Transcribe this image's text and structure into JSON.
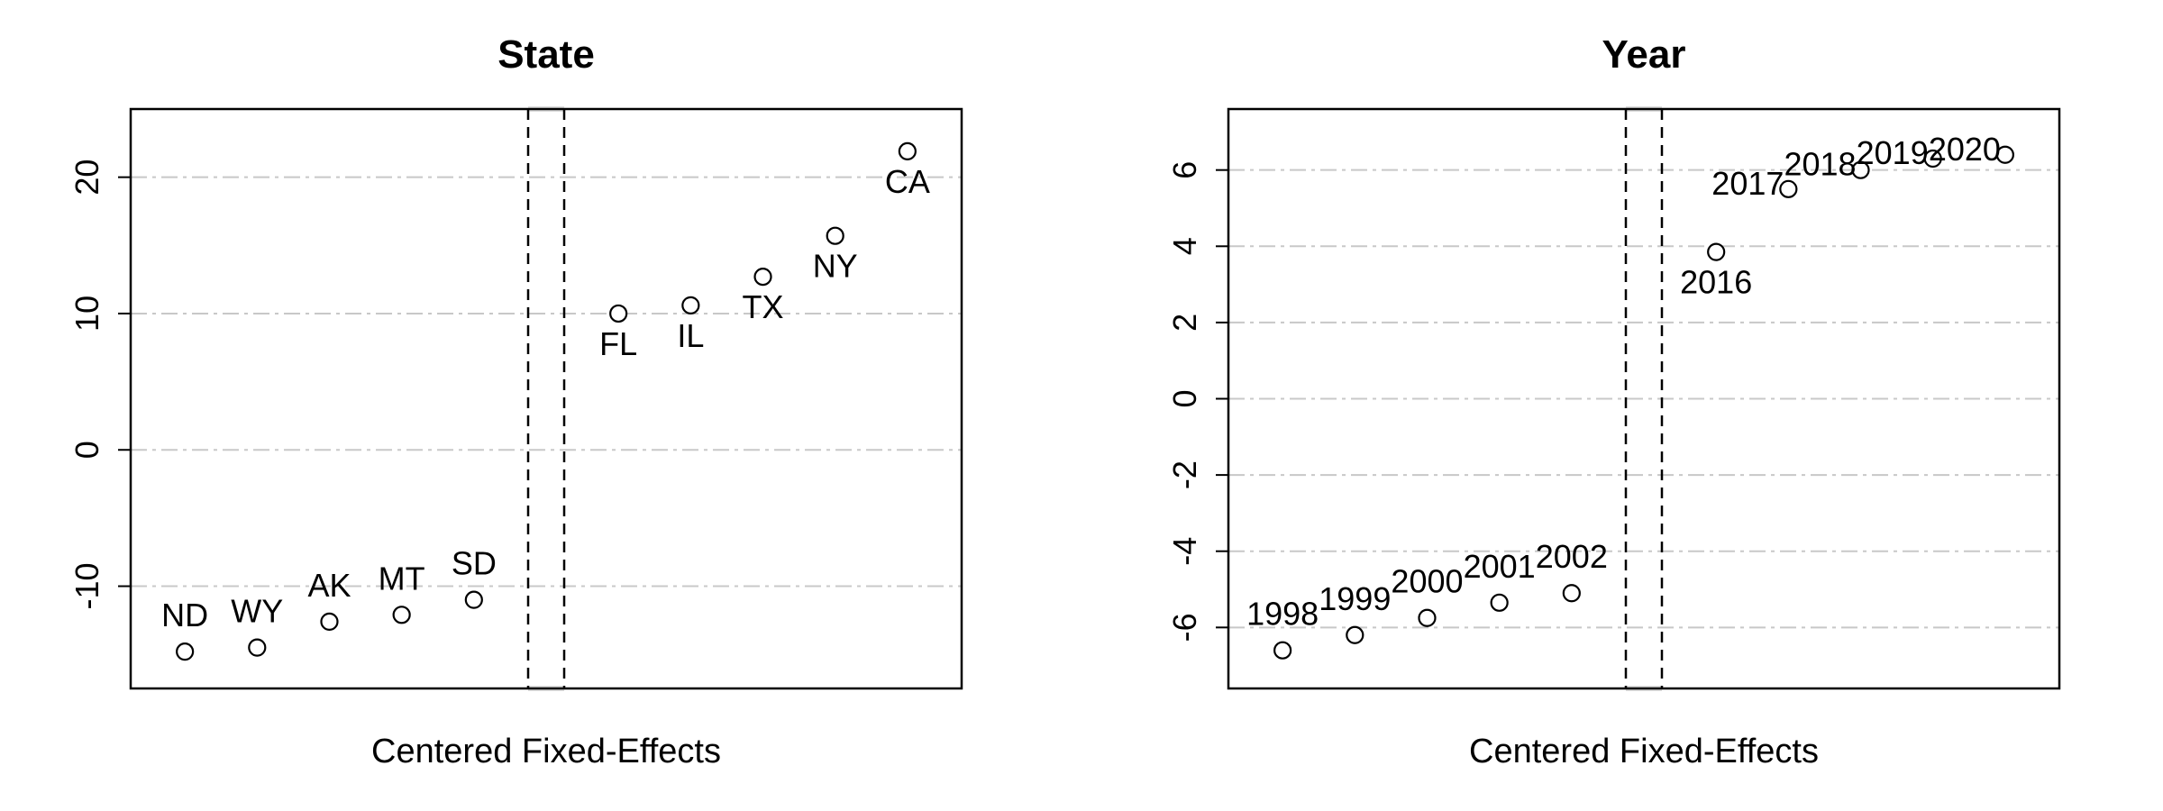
{
  "chart_data": [
    {
      "type": "scatter",
      "title": "State",
      "xlabel": "Centered Fixed-Effects",
      "ylabel": "",
      "ylim": [
        -17.5,
        25
      ],
      "yticks": [
        -10,
        0,
        10,
        20
      ],
      "grid": true,
      "split_after_index": 4,
      "points": [
        {
          "label": "ND",
          "y": -14.8
        },
        {
          "label": "WY",
          "y": -14.5
        },
        {
          "label": "AK",
          "y": -12.6
        },
        {
          "label": "MT",
          "y": -12.1
        },
        {
          "label": "SD",
          "y": -11.0
        },
        {
          "label": "FL",
          "y": 10.0
        },
        {
          "label": "IL",
          "y": 10.6
        },
        {
          "label": "TX",
          "y": 12.7
        },
        {
          "label": "NY",
          "y": 15.7
        },
        {
          "label": "CA",
          "y": 21.9
        }
      ]
    },
    {
      "type": "scatter",
      "title": "Year",
      "xlabel": "Centered Fixed-Effects",
      "ylabel": "",
      "ylim": [
        -7.6,
        7.6
      ],
      "yticks": [
        -6,
        -4,
        -2,
        0,
        2,
        4,
        6
      ],
      "grid": true,
      "split_after_index": 4,
      "points": [
        {
          "label": "1998",
          "y": -6.6
        },
        {
          "label": "1999",
          "y": -6.2
        },
        {
          "label": "2000",
          "y": -5.75
        },
        {
          "label": "2001",
          "y": -5.35
        },
        {
          "label": "2002",
          "y": -5.1
        },
        {
          "label": "2016",
          "y": 3.85
        },
        {
          "label": "2017",
          "y": 5.5
        },
        {
          "label": "2018",
          "y": 6.0
        },
        {
          "label": "2019",
          "y": 6.3
        },
        {
          "label": "2020",
          "y": 6.4
        }
      ]
    }
  ]
}
